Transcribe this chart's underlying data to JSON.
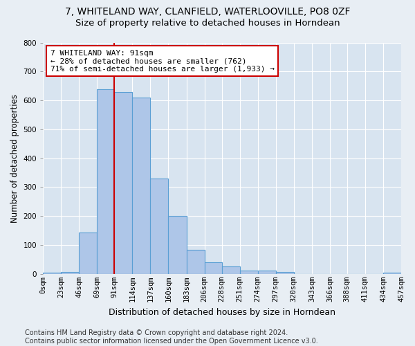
{
  "title1": "7, WHITELAND WAY, CLANFIELD, WATERLOOVILLE, PO8 0ZF",
  "title2": "Size of property relative to detached houses in Horndean",
  "xlabel": "Distribution of detached houses by size in Horndean",
  "ylabel": "Number of detached properties",
  "bar_values": [
    5,
    8,
    143,
    638,
    630,
    610,
    330,
    200,
    84,
    40,
    25,
    12,
    12,
    8,
    0,
    0,
    0,
    0,
    0,
    5
  ],
  "bin_edges": [
    0,
    23,
    46,
    69,
    91,
    114,
    137,
    160,
    183,
    206,
    228,
    251,
    274,
    297,
    320,
    343,
    366,
    388,
    411,
    434,
    457
  ],
  "x_tick_labels": [
    "0sqm",
    "23sqm",
    "46sqm",
    "69sqm",
    "91sqm",
    "114sqm",
    "137sqm",
    "160sqm",
    "183sqm",
    "206sqm",
    "228sqm",
    "251sqm",
    "274sqm",
    "297sqm",
    "320sqm",
    "343sqm",
    "366sqm",
    "388sqm",
    "411sqm",
    "434sqm",
    "457sqm"
  ],
  "bar_color": "#aec6e8",
  "bar_edge_color": "#5a9fd4",
  "vline_x": 91,
  "vline_color": "#cc0000",
  "annotation_line1": "7 WHITELAND WAY: 91sqm",
  "annotation_line2": "← 28% of detached houses are smaller (762)",
  "annotation_line3": "71% of semi-detached houses are larger (1,933) →",
  "annotation_box_color": "#ffffff",
  "annotation_box_edge": "#cc0000",
  "ylim": [
    0,
    800
  ],
  "background_color": "#e8eef4",
  "plot_bg_color": "#d8e4f0",
  "footer_text": "Contains HM Land Registry data © Crown copyright and database right 2024.\nContains public sector information licensed under the Open Government Licence v3.0.",
  "title1_fontsize": 10,
  "title2_fontsize": 9.5,
  "ylabel_fontsize": 8.5,
  "xlabel_fontsize": 9,
  "tick_fontsize": 7.5,
  "annot_fontsize": 8,
  "footer_fontsize": 7
}
